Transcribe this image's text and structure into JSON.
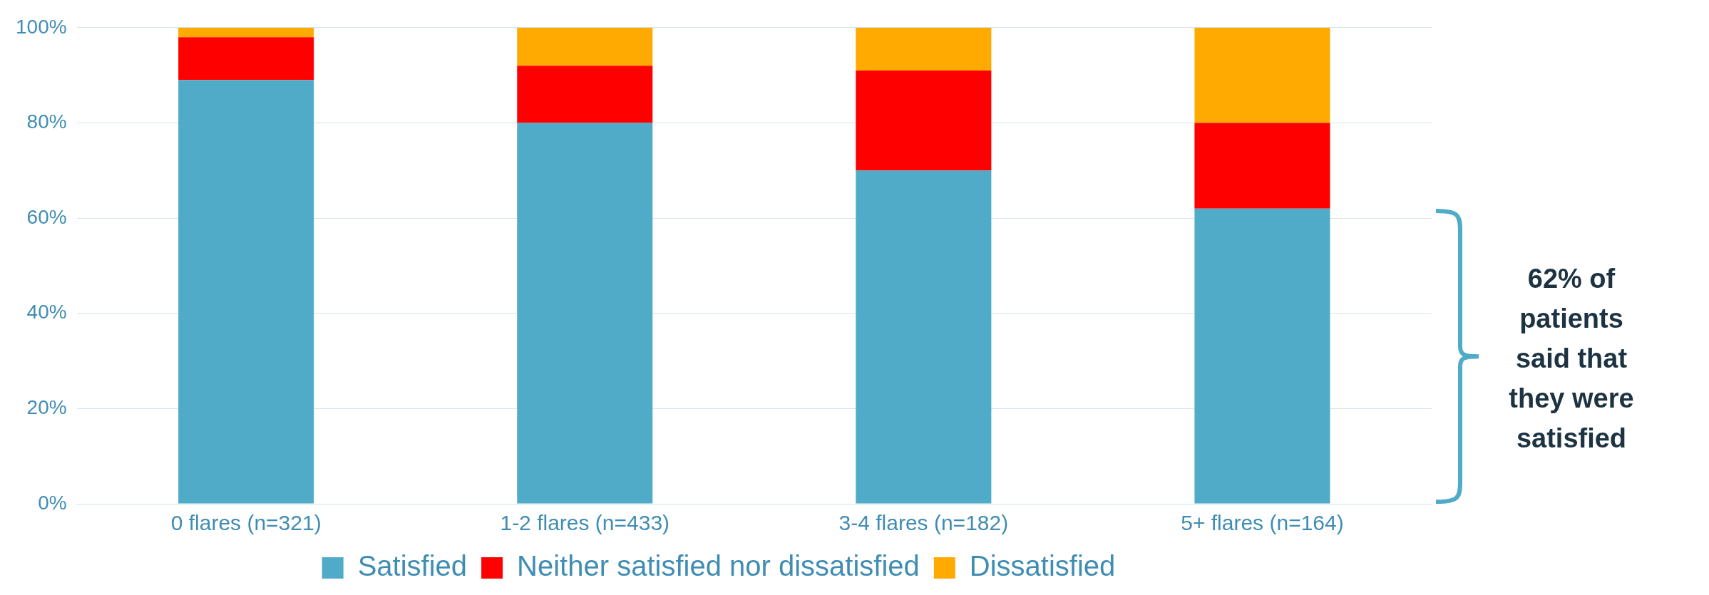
{
  "chart_data": {
    "type": "bar",
    "stacked": true,
    "categories": [
      "0 flares (n=321)",
      "1-2 flares (n=433)",
      "3-4 flares (n=182)",
      "5+ flares (n=164)"
    ],
    "series": [
      {
        "name": "Satisfied",
        "color": "#4fabc8",
        "values": [
          89,
          80,
          70,
          62
        ]
      },
      {
        "name": "Neither satisfied nor dissatisfied",
        "color": "#ff0000",
        "values": [
          9,
          12,
          21,
          18
        ]
      },
      {
        "name": "Dissatisfied",
        "color": "#ffaa00",
        "values": [
          2,
          8,
          9,
          20
        ]
      }
    ],
    "ylim": [
      0,
      100
    ],
    "yticks": [
      {
        "value": 0,
        "label": "0%"
      },
      {
        "value": 20,
        "label": "20%"
      },
      {
        "value": 40,
        "label": "40%"
      },
      {
        "value": 60,
        "label": "60%"
      },
      {
        "value": 80,
        "label": "80%"
      },
      {
        "value": 100,
        "label": "100%"
      }
    ],
    "grid": "y",
    "legend": "bottom",
    "annotations": [
      "62% of patients said that they were satisfied"
    ]
  }
}
